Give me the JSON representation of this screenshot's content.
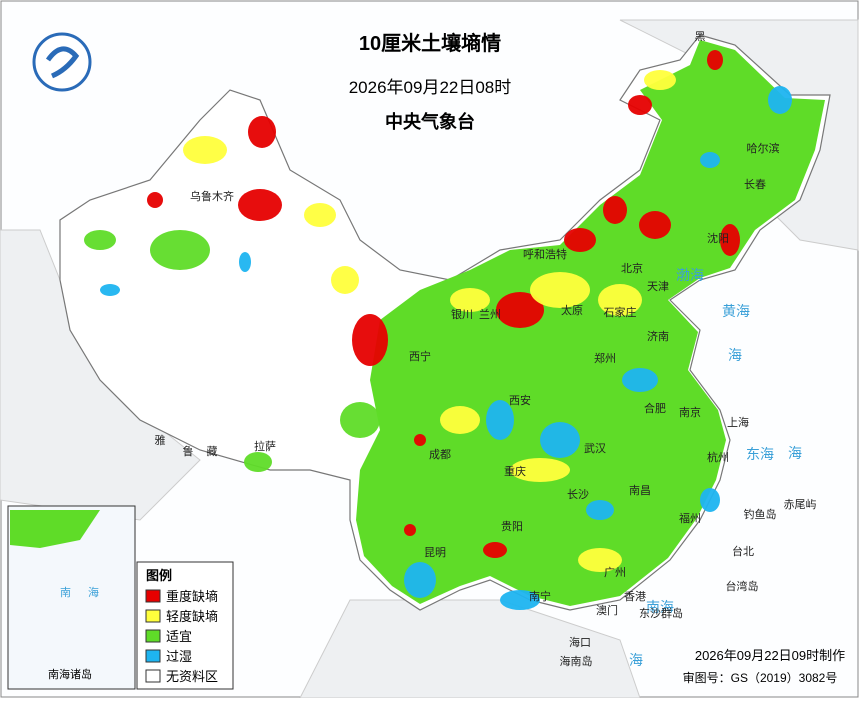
{
  "header": {
    "title": "10厘米土壤墒情",
    "datetime": "2026年09月22日08时",
    "agency": "中央气象台"
  },
  "legend": {
    "title": "图例",
    "items": [
      {
        "label": "重度缺墒",
        "color": "#e60000"
      },
      {
        "label": "轻度缺墒",
        "color": "#ffff3c"
      },
      {
        "label": "适宜",
        "color": "#5fdc28"
      },
      {
        "label": "过湿",
        "color": "#1eb4f0"
      },
      {
        "label": "无资料区",
        "color": "#ffffff"
      }
    ]
  },
  "places": [
    "黑",
    "哈尔滨",
    "长春",
    "沈阳",
    "乌鲁木齐",
    "呼和浩特",
    "北京",
    "天津",
    "石家庄",
    "太原",
    "银川",
    "兰州",
    "西宁",
    "济南",
    "郑州",
    "西安",
    "合肥",
    "南京",
    "上海",
    "武汉",
    "杭州",
    "成都",
    "重庆",
    "长沙",
    "南昌",
    "福州",
    "台北",
    "贵阳",
    "昆明",
    "南宁",
    "广州",
    "香港",
    "澳门",
    "海口",
    "拉萨",
    "雅",
    "鲁",
    "藏",
    "渤海",
    "黄海",
    "海",
    "东海",
    "海",
    "南海",
    "台湾岛",
    "海南岛",
    "东沙群岛",
    "钓鱼岛",
    "赤尾屿",
    "海"
  ],
  "inset": {
    "title": "南海诸岛",
    "labels": [
      "南",
      "海"
    ]
  },
  "footer": {
    "made": "2026年09月22日09时制作",
    "review": "审图号：GS（2019）3082号"
  }
}
